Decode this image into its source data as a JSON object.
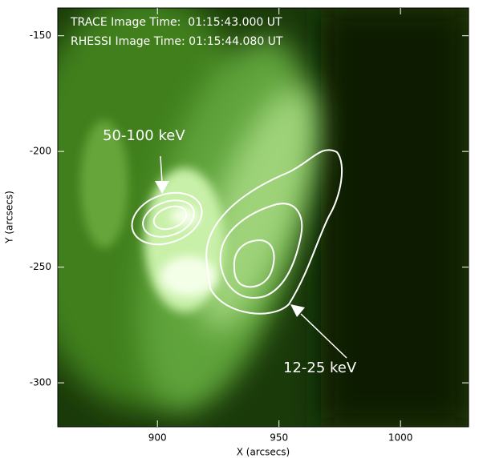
{
  "chart_data": {
    "type": "image",
    "annotations": [
      "TRACE Image Time:  01:15:43.000 UT",
      "RHESSI Image Time: 01:15:44.080 UT",
      "50-100 keV",
      "12-25 keV"
    ],
    "xlabel": "X (arcsecs)",
    "ylabel": "Y (arcsecs)",
    "xlim": [
      859,
      1028
    ],
    "ylim": [
      -319,
      -138
    ],
    "xticks": [
      900,
      950,
      1000
    ],
    "yticks": [
      -150,
      -200,
      -250,
      -300
    ]
  }
}
